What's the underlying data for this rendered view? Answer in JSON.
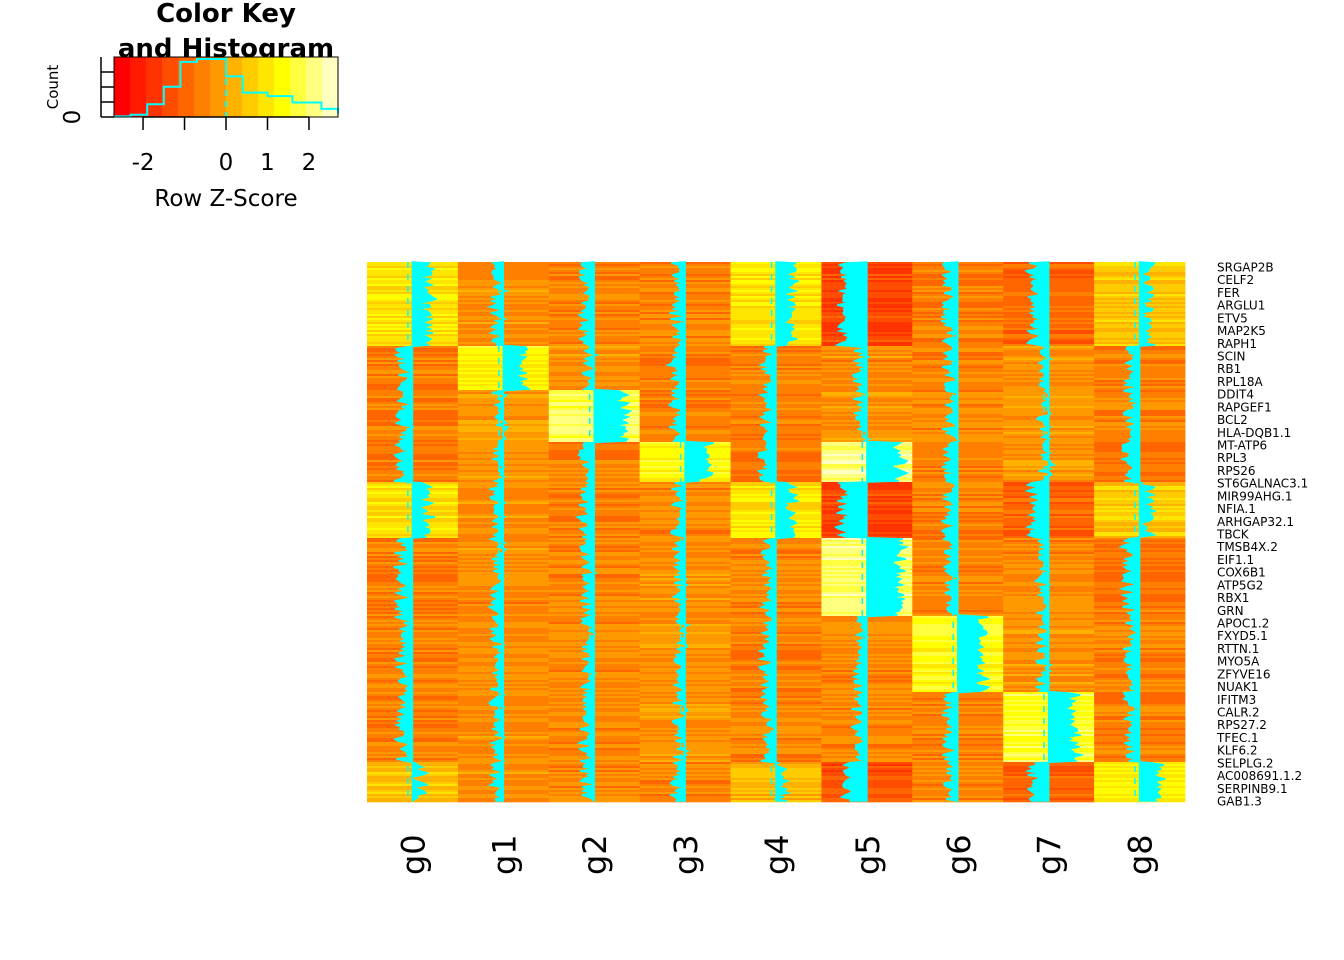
{
  "chart_data": [
    {
      "type": "histogram",
      "title_lines": [
        "Color Key",
        "and Histogram"
      ],
      "xlabel": "Row Z-Score",
      "ylabel": "Count",
      "xlim": [
        -2.7,
        2.7
      ],
      "x_ticks": [
        -2,
        0,
        1,
        2
      ],
      "y_tick_labels": [
        "0"
      ],
      "color_scale": [
        "#ff0000",
        "#ff1a00",
        "#ff3300",
        "#ff4d00",
        "#ff6600",
        "#ff8000",
        "#ff9900",
        "#ffb300",
        "#ffcc00",
        "#ffe600",
        "#ffff00",
        "#ffff40",
        "#ffff80",
        "#ffffbf"
      ],
      "histogram_color": "#00ffff",
      "bin_edges": [
        -2.7,
        -2.3,
        -1.9,
        -1.5,
        -1.1,
        -0.7,
        0,
        0.4,
        1,
        1.6,
        2.3,
        2.7
      ],
      "relative_counts": [
        0.01,
        0.04,
        0.22,
        0.52,
        0.95,
        1.0,
        0.7,
        0.42,
        0.36,
        0.25,
        0.14,
        0.06
      ],
      "mean_line": 0
    },
    {
      "type": "heatmap",
      "columns": [
        "g0",
        "g1",
        "g2",
        "g3",
        "g4",
        "g5",
        "g6",
        "g7",
        "g8"
      ],
      "row_labels": [
        "SRGAP2B",
        "CELF2",
        "FER",
        "ARGLU1",
        "ETV5",
        "MAP2K5",
        "RAPH1",
        "SCIN",
        "RB1",
        "RPL18A",
        "DDIT4",
        "RAPGEF1",
        "BCL2",
        "HLA-DQB1.1",
        "MT-ATP6",
        "RPL3",
        "RPS26",
        "ST6GALNAC3.1",
        "MIR99AHG.1",
        "NFIA.1",
        "ARHGAP32.1",
        "TBCK",
        "TMSB4X.2",
        "EIF1.1",
        "COX6B1",
        "ATP5G2",
        "RBX1",
        "GRN",
        "APOC1.2",
        "FXYD5.1",
        "RTTN.1",
        "MYO5A",
        "ZFYVE16",
        "NUAK1",
        "IFITM3",
        "CALR.2",
        "RPS27.2",
        "TFEC.1",
        "KLF6.2",
        "SELPLG.2",
        "AC008691.1.2",
        "SERPINB9.1",
        "GAB1.3"
      ],
      "trace_color": "#00ffff",
      "row_blocks": [
        {
          "start": 0.0,
          "end": 0.155,
          "z": [
            1.0,
            -0.4,
            -0.6,
            -0.5,
            1.0,
            -1.6,
            -0.6,
            -1.0,
            0.6
          ]
        },
        {
          "start": 0.155,
          "end": 0.237,
          "z": [
            -0.6,
            1.3,
            -0.2,
            -0.7,
            -0.6,
            -0.4,
            -0.5,
            -0.3,
            -0.6
          ]
        },
        {
          "start": 0.237,
          "end": 0.33,
          "z": [
            -0.6,
            -0.2,
            2.0,
            -0.6,
            -0.6,
            -0.4,
            -0.5,
            -0.3,
            -0.6
          ]
        },
        {
          "start": 0.33,
          "end": 0.405,
          "z": [
            -0.8,
            -0.4,
            -0.6,
            1.4,
            -0.8,
            2.2,
            -0.6,
            -0.2,
            -0.8
          ]
        },
        {
          "start": 0.405,
          "end": 0.51,
          "z": [
            1.0,
            -0.4,
            -0.6,
            -0.5,
            1.1,
            -1.6,
            -0.6,
            -1.0,
            0.6
          ]
        },
        {
          "start": 0.51,
          "end": 0.655,
          "z": [
            -0.7,
            -0.4,
            -0.5,
            -0.3,
            -0.6,
            2.2,
            -0.5,
            -0.4,
            -0.8
          ]
        },
        {
          "start": 0.655,
          "end": 0.793,
          "z": [
            -0.6,
            -0.4,
            -0.5,
            -0.3,
            -0.6,
            -0.5,
            1.6,
            -0.4,
            -0.6
          ]
        },
        {
          "start": 0.793,
          "end": 0.925,
          "z": [
            -0.6,
            -0.4,
            -0.5,
            -0.3,
            -0.6,
            -0.5,
            -0.5,
            1.7,
            -0.6
          ]
        },
        {
          "start": 0.925,
          "end": 1.0,
          "z": [
            0.5,
            -0.4,
            -0.5,
            -0.5,
            0.3,
            -1.4,
            -0.5,
            -1.2,
            1.3
          ]
        }
      ]
    }
  ]
}
